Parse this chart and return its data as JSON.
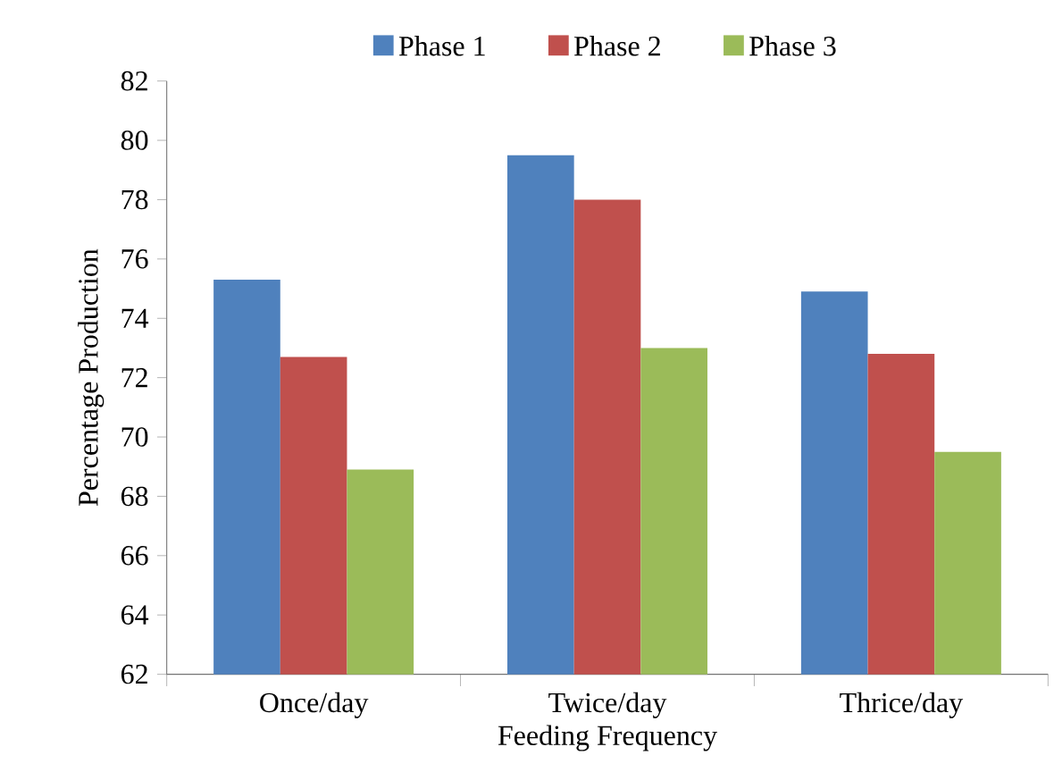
{
  "chart_data": {
    "type": "bar",
    "xlabel": "Feeding Frequency",
    "ylabel": "Percentage Production",
    "categories": [
      "Once/day",
      "Twice/day",
      "Thrice/day"
    ],
    "series": [
      {
        "name": "Phase 1",
        "color": "#4f81bd",
        "values": [
          75.3,
          79.5,
          74.9
        ]
      },
      {
        "name": "Phase 2",
        "color": "#c0504d",
        "values": [
          72.7,
          78.0,
          72.8
        ]
      },
      {
        "name": "Phase 3",
        "color": "#9bbb59",
        "values": [
          68.9,
          73.0,
          69.5
        ]
      }
    ],
    "ylim": [
      62,
      82
    ],
    "yticks": [
      62,
      64,
      66,
      68,
      70,
      72,
      74,
      76,
      78,
      80,
      82
    ],
    "legend": "top"
  }
}
